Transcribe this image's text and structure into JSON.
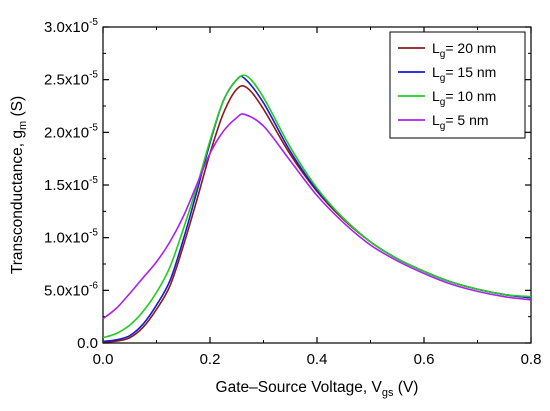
{
  "chart_data": {
    "type": "line",
    "xlabel": "Gate–Source Voltage, V",
    "xlabel_sub": "gs",
    "xlabel_unit": " (V)",
    "ylabel": "Transconductance, g",
    "ylabel_sub": "m",
    "ylabel_unit": " (S)",
    "xlim": [
      0,
      0.8
    ],
    "ylim": [
      0,
      3e-05
    ],
    "grid": false,
    "legend_position": "top-right",
    "x_ticks": [
      {
        "value": 0.0,
        "label": "0.0"
      },
      {
        "value": 0.2,
        "label": "0.2"
      },
      {
        "value": 0.4,
        "label": "0.4"
      },
      {
        "value": 0.6,
        "label": "0.6"
      },
      {
        "value": 0.8,
        "label": "0.8"
      }
    ],
    "y_ticks": [
      {
        "value": 0.0,
        "label": "0.0",
        "exp": ""
      },
      {
        "value": 5e-06,
        "label": "5.0x10",
        "exp": "-6"
      },
      {
        "value": 1e-05,
        "label": "1.0x10",
        "exp": "-5"
      },
      {
        "value": 1.5e-05,
        "label": "1.5x10",
        "exp": "-5"
      },
      {
        "value": 2e-05,
        "label": "2.0x10",
        "exp": "-5"
      },
      {
        "value": 2.5e-05,
        "label": "2.5x10",
        "exp": "-5"
      },
      {
        "value": 3e-05,
        "label": "3.0x10",
        "exp": "-5"
      }
    ],
    "series": [
      {
        "name": "L",
        "sub": "g",
        "suffix": "= 20 nm",
        "color": "#8b1a1a",
        "points": [
          [
            0,
            1e-07
          ],
          [
            0.025,
            1.8e-07
          ],
          [
            0.05,
            5e-07
          ],
          [
            0.075,
            1.5e-06
          ],
          [
            0.1,
            3.2e-06
          ],
          [
            0.125,
            5.4e-06
          ],
          [
            0.15,
            9.2e-06
          ],
          [
            0.175,
            1.35e-05
          ],
          [
            0.2,
            1.8e-05
          ],
          [
            0.225,
            2.18e-05
          ],
          [
            0.25,
            2.41e-05
          ],
          [
            0.27,
            2.42e-05
          ],
          [
            0.3,
            2.22e-05
          ],
          [
            0.35,
            1.79e-05
          ],
          [
            0.4,
            1.44e-05
          ],
          [
            0.45,
            1.17e-05
          ],
          [
            0.5,
            9.6e-06
          ],
          [
            0.55,
            8e-06
          ],
          [
            0.6,
            6.8e-06
          ],
          [
            0.65,
            5.8e-06
          ],
          [
            0.7,
            5.1e-06
          ],
          [
            0.75,
            4.6e-06
          ],
          [
            0.8,
            4.3e-06
          ]
        ]
      },
      {
        "name": "L",
        "sub": "g",
        "suffix": "= 15 nm",
        "color": "#1a1acc",
        "points": [
          [
            0,
            1.5e-07
          ],
          [
            0.025,
            3e-07
          ],
          [
            0.05,
            7e-07
          ],
          [
            0.075,
            1.8e-06
          ],
          [
            0.1,
            3.6e-06
          ],
          [
            0.125,
            5.9e-06
          ],
          [
            0.15,
            9.8e-06
          ],
          [
            0.175,
            1.43e-05
          ],
          [
            0.2,
            1.9e-05
          ],
          [
            0.225,
            2.3e-05
          ],
          [
            0.25,
            2.5e-05
          ],
          [
            0.265,
            2.51e-05
          ],
          [
            0.3,
            2.28e-05
          ],
          [
            0.35,
            1.82e-05
          ],
          [
            0.4,
            1.45e-05
          ],
          [
            0.45,
            1.18e-05
          ],
          [
            0.5,
            9.6e-06
          ],
          [
            0.55,
            8e-06
          ],
          [
            0.6,
            6.8e-06
          ],
          [
            0.65,
            5.8e-06
          ],
          [
            0.7,
            5.1e-06
          ],
          [
            0.75,
            4.6e-06
          ],
          [
            0.8,
            4.3e-06
          ]
        ]
      },
      {
        "name": "L",
        "sub": "g",
        "suffix": "= 10 nm",
        "color": "#22cc22",
        "points": [
          [
            0,
            5e-07
          ],
          [
            0.025,
            9e-07
          ],
          [
            0.05,
            1.7e-06
          ],
          [
            0.075,
            3e-06
          ],
          [
            0.1,
            4.8e-06
          ],
          [
            0.125,
            7.2e-06
          ],
          [
            0.15,
            1.08e-05
          ],
          [
            0.175,
            1.48e-05
          ],
          [
            0.2,
            1.92e-05
          ],
          [
            0.225,
            2.3e-05
          ],
          [
            0.25,
            2.5e-05
          ],
          [
            0.27,
            2.53e-05
          ],
          [
            0.3,
            2.33e-05
          ],
          [
            0.35,
            1.86e-05
          ],
          [
            0.4,
            1.47e-05
          ],
          [
            0.45,
            1.18e-05
          ],
          [
            0.5,
            9.6e-06
          ],
          [
            0.55,
            8e-06
          ],
          [
            0.6,
            6.8e-06
          ],
          [
            0.65,
            5.8e-06
          ],
          [
            0.7,
            5.1e-06
          ],
          [
            0.75,
            4.6e-06
          ],
          [
            0.8,
            4.4e-06
          ]
        ]
      },
      {
        "name": "L",
        "sub": "g",
        "suffix": "= 5 nm",
        "color": "#aa22ee",
        "points": [
          [
            0,
            2.3e-06
          ],
          [
            0.025,
            3.3e-06
          ],
          [
            0.05,
            4.7e-06
          ],
          [
            0.075,
            6.2e-06
          ],
          [
            0.1,
            7.7e-06
          ],
          [
            0.125,
            9.6e-06
          ],
          [
            0.15,
            1.2e-05
          ],
          [
            0.175,
            1.5e-05
          ],
          [
            0.2,
            1.8e-05
          ],
          [
            0.225,
            2.01e-05
          ],
          [
            0.25,
            2.14e-05
          ],
          [
            0.265,
            2.17e-05
          ],
          [
            0.3,
            2.06e-05
          ],
          [
            0.35,
            1.73e-05
          ],
          [
            0.4,
            1.4e-05
          ],
          [
            0.45,
            1.14e-05
          ],
          [
            0.5,
            9.3e-06
          ],
          [
            0.55,
            7.8e-06
          ],
          [
            0.6,
            6.6e-06
          ],
          [
            0.65,
            5.6e-06
          ],
          [
            0.7,
            4.9e-06
          ],
          [
            0.75,
            4.4e-06
          ],
          [
            0.8,
            4.1e-06
          ]
        ]
      }
    ]
  }
}
